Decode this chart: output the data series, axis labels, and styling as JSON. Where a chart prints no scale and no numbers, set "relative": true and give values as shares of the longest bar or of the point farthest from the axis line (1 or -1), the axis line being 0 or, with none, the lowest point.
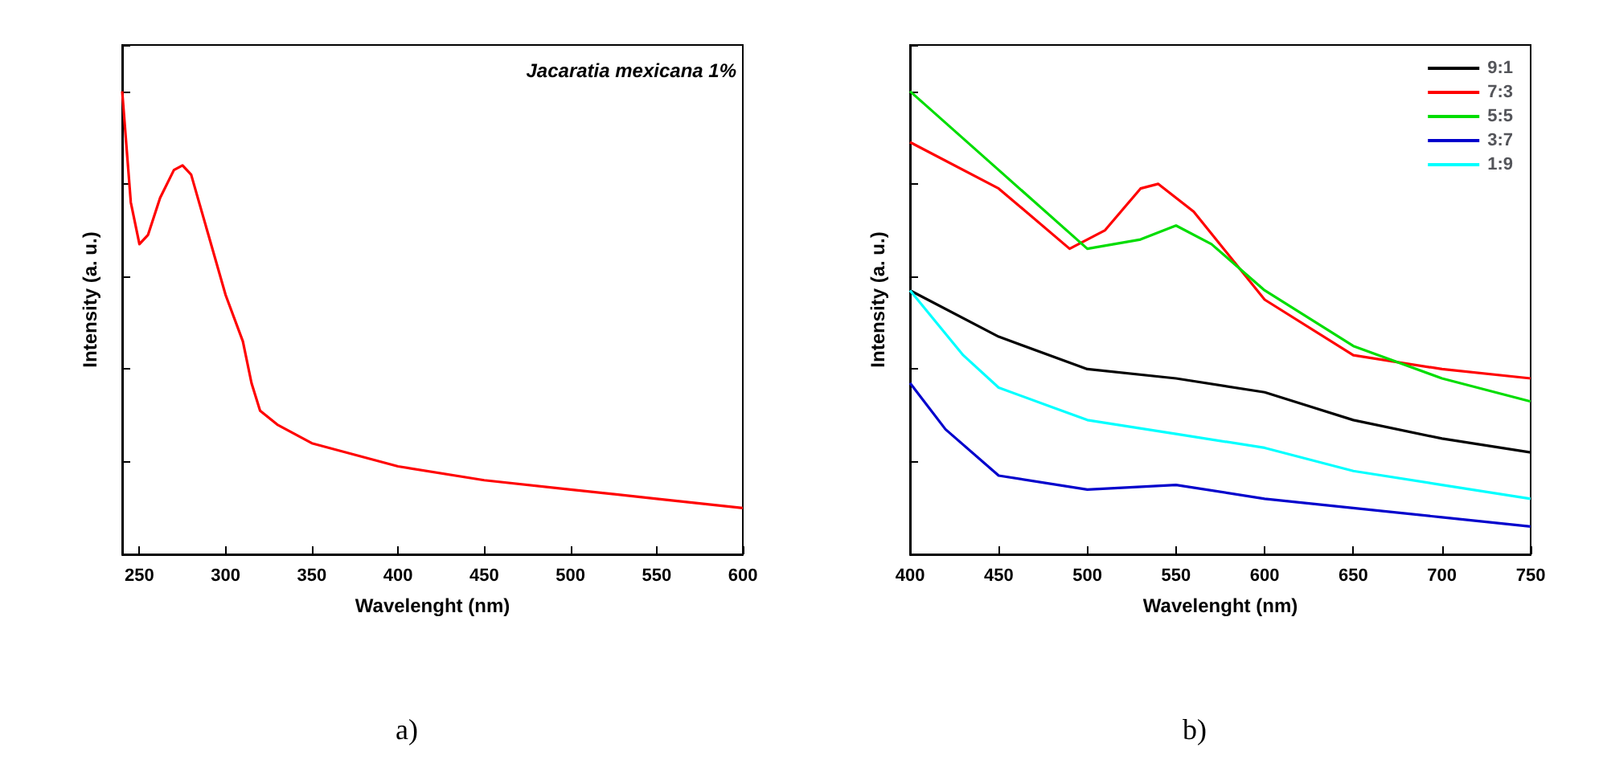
{
  "chart_data": [
    {
      "type": "line",
      "xlabel": "Wavelenght (nm)",
      "ylabel": "Intensity (a. u.)",
      "relative": true,
      "xlim": [
        240,
        600
      ],
      "xticks": [
        250,
        300,
        350,
        400,
        450,
        500,
        550,
        600
      ],
      "tick_labels": "x",
      "grid": false,
      "legend": false,
      "annotations": [
        "Jacaratia mexicana 1%",
        "a)"
      ],
      "series": [
        {
          "color": "#ff0000",
          "x": [
            240,
            245,
            250,
            255,
            262,
            270,
            275,
            280,
            290,
            300,
            310,
            315,
            320,
            330,
            350,
            400,
            450,
            500,
            550,
            600
          ],
          "values": [
            1.0,
            0.76,
            0.67,
            0.69,
            0.77,
            0.83,
            0.84,
            0.82,
            0.69,
            0.56,
            0.46,
            0.37,
            0.31,
            0.28,
            0.24,
            0.19,
            0.16,
            0.14,
            0.12,
            0.1
          ]
        }
      ]
    },
    {
      "type": "line",
      "xlabel": "Wavelenght (nm)",
      "ylabel": "Intensity (a. u.)",
      "relative": true,
      "xlim": [
        400,
        750
      ],
      "xticks": [
        400,
        450,
        500,
        550,
        600,
        650,
        700,
        750
      ],
      "tick_labels": "x",
      "grid": false,
      "legend": "top right",
      "annotations": [
        "b)"
      ],
      "series": [
        {
          "name": "9:1",
          "color": "#000000",
          "x": [
            400,
            450,
            500,
            550,
            600,
            650,
            700,
            750
          ],
          "values": [
            0.57,
            0.47,
            0.4,
            0.38,
            0.35,
            0.29,
            0.25,
            0.22
          ]
        },
        {
          "name": "7:3",
          "color": "#ff0000",
          "x": [
            400,
            450,
            490,
            510,
            530,
            540,
            560,
            600,
            650,
            700,
            750
          ],
          "values": [
            0.89,
            0.79,
            0.66,
            0.7,
            0.79,
            0.8,
            0.74,
            0.55,
            0.43,
            0.4,
            0.38
          ]
        },
        {
          "name": "5:5",
          "color": "#00dd00",
          "x": [
            400,
            450,
            500,
            530,
            550,
            570,
            600,
            650,
            700,
            750
          ],
          "values": [
            1.0,
            0.83,
            0.66,
            0.68,
            0.71,
            0.67,
            0.57,
            0.45,
            0.38,
            0.33
          ]
        },
        {
          "name": "3:7",
          "color": "#0000cc",
          "x": [
            400,
            420,
            450,
            500,
            550,
            600,
            650,
            700,
            750
          ],
          "values": [
            0.37,
            0.27,
            0.17,
            0.14,
            0.15,
            0.12,
            0.1,
            0.08,
            0.06
          ]
        },
        {
          "name": "1:9",
          "color": "#00ffff",
          "x": [
            400,
            430,
            450,
            500,
            550,
            600,
            650,
            700,
            750
          ],
          "values": [
            0.57,
            0.43,
            0.36,
            0.29,
            0.26,
            0.23,
            0.18,
            0.15,
            0.12
          ]
        }
      ]
    }
  ]
}
